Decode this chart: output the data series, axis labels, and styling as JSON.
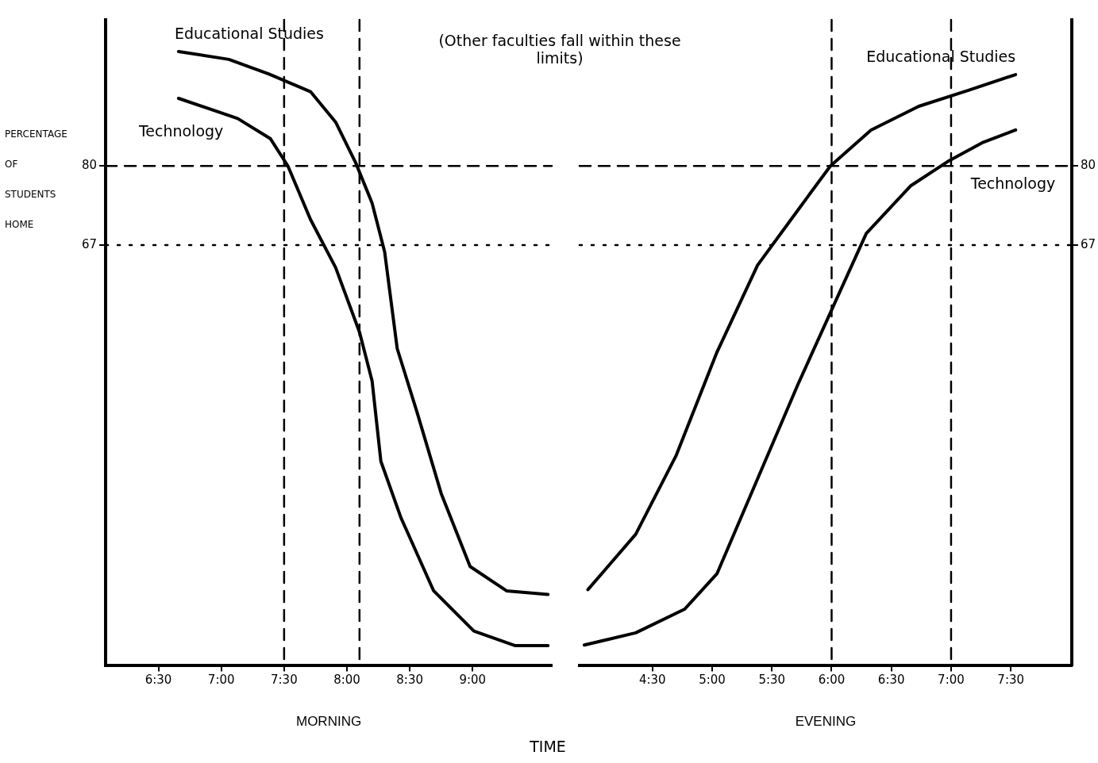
{
  "chart_data": [
    {
      "type": "line",
      "xlabel": "MORNING",
      "ylabel": "PERCENTAGE OF STUDENTS HOME",
      "annotations": [
        "(Other faculties fall within these limits)",
        "TIME"
      ],
      "marker": "none",
      "grid": false,
      "legend": false,
      "xlim": [
        6.08,
        9.63
      ],
      "xticks": [
        {
          "value": 6.5,
          "label": "6:30"
        },
        {
          "value": 7,
          "label": "7:00"
        },
        {
          "value": 7.5,
          "label": "7:30"
        },
        {
          "value": 8,
          "label": "8:00"
        },
        {
          "value": 8.5,
          "label": "8:30"
        },
        {
          "value": 9,
          "label": "9:00"
        }
      ],
      "ylim": [
        -2,
        104
      ],
      "yticks": [
        80,
        67
      ],
      "ref_lines": [
        {
          "axis": "y",
          "value": 80,
          "line_style": "dashed",
          "color": "#000000"
        },
        {
          "axis": "y",
          "value": 67,
          "line_style": "dotted",
          "color": "#000000"
        },
        {
          "axis": "x",
          "value": 7.5,
          "line_style": "dashed",
          "color": "#000000"
        },
        {
          "axis": "x",
          "value": 8.1,
          "line_style": "dashed",
          "color": "#000000"
        }
      ],
      "series": [
        {
          "name": "Educational Studies",
          "color": "#000000",
          "x": [
            6.66,
            7.06,
            7.38,
            7.71,
            7.91,
            8.07,
            8.2,
            8.3,
            8.4,
            8.56,
            8.75,
            8.98,
            9.27,
            9.6
          ],
          "values": [
            98.8,
            97.5,
            95.1,
            92.2,
            87.2,
            80.5,
            73.9,
            65.9,
            50,
            39.4,
            26.2,
            14.2,
            10.2,
            9.6
          ]
        },
        {
          "name": "Technology",
          "color": "#000000",
          "x": [
            6.66,
            7.13,
            7.39,
            7.53,
            7.71,
            7.91,
            8.1,
            8.2,
            8.27,
            8.43,
            8.69,
            9.01,
            9.34,
            9.6
          ],
          "values": [
            91.1,
            87.8,
            84.5,
            80,
            71.2,
            63.3,
            52.7,
            44.7,
            31.5,
            22.2,
            10.2,
            3.6,
            1.2,
            1.2
          ]
        }
      ]
    },
    {
      "type": "line",
      "xlabel": "EVENING",
      "marker": "none",
      "grid": false,
      "legend": false,
      "xlim": [
        3.89,
        8.01
      ],
      "xticks": [
        {
          "value": 4.5,
          "label": "4:30"
        },
        {
          "value": 5,
          "label": "5:00"
        },
        {
          "value": 5.5,
          "label": "5:30"
        },
        {
          "value": 6,
          "label": "6:00"
        },
        {
          "value": 6.5,
          "label": "6:30"
        },
        {
          "value": 7,
          "label": "7:00"
        },
        {
          "value": 7.5,
          "label": "7:30"
        }
      ],
      "y2lim": [
        -2,
        104
      ],
      "y2ticks": [
        80,
        67
      ],
      "ref_lines": [
        {
          "axis": "y2",
          "value": 80,
          "line_style": "dashed",
          "color": "#000000"
        },
        {
          "axis": "y2",
          "value": 67,
          "line_style": "dotted",
          "color": "#000000"
        },
        {
          "axis": "x",
          "value": 6,
          "line_style": "dashed",
          "color": "#000000"
        },
        {
          "axis": "x",
          "value": 7,
          "line_style": "dashed",
          "color": "#000000"
        }
      ],
      "series": [
        {
          "name": "Educational Studies",
          "color": "#000000",
          "axis": "y2",
          "x": [
            3.96,
            4.36,
            4.7,
            5.04,
            5.38,
            5.72,
            5.99,
            6.33,
            6.73,
            7.14,
            7.54
          ],
          "values": [
            10.4,
            19.5,
            32.5,
            49.4,
            63.7,
            72.8,
            80,
            85.9,
            89.8,
            92.4,
            95
          ]
        },
        {
          "name": "Technology",
          "color": "#000000",
          "axis": "y2",
          "x": [
            3.93,
            4.36,
            4.77,
            5.04,
            5.38,
            5.72,
            5.99,
            6.29,
            6.66,
            6.97,
            7.27,
            7.54
          ],
          "values": [
            1.3,
            3.3,
            7.2,
            13,
            28.6,
            44.2,
            55.9,
            68.9,
            76.7,
            80.7,
            83.9,
            85.9
          ]
        }
      ]
    }
  ]
}
